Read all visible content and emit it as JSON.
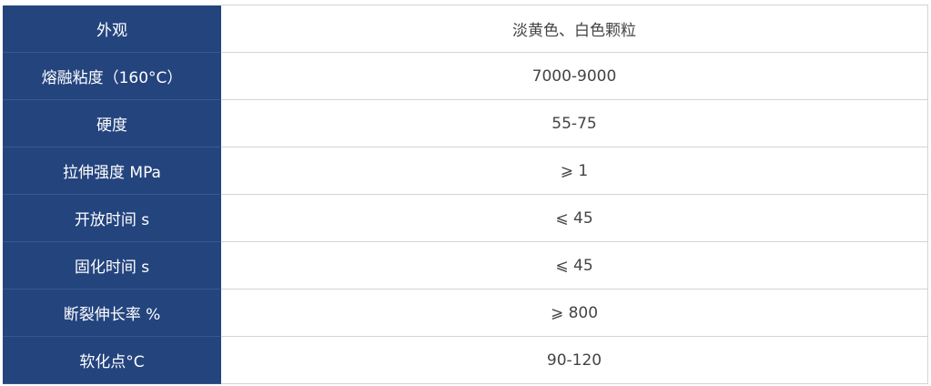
{
  "table": {
    "rows": [
      {
        "label": "外观",
        "value": "淡黄色、白色颗粒"
      },
      {
        "label": "熔融粘度（160°C）",
        "value": "7000-9000"
      },
      {
        "label": "硬度",
        "value": "55-75"
      },
      {
        "label": "拉伸强度 MPa",
        "value": "⩾ 1"
      },
      {
        "label": "开放时间 s",
        "value": "⩽ 45"
      },
      {
        "label": "固化时间 s",
        "value": "⩽ 45"
      },
      {
        "label": "断裂伸长率 %",
        "value": "⩾ 800"
      },
      {
        "label": "软化点°C",
        "value": "90-120"
      }
    ]
  },
  "colors": {
    "header_bg": "#24447e",
    "header_text": "#ffffff",
    "value_text": "#444444",
    "border": "#d4d4d4"
  }
}
